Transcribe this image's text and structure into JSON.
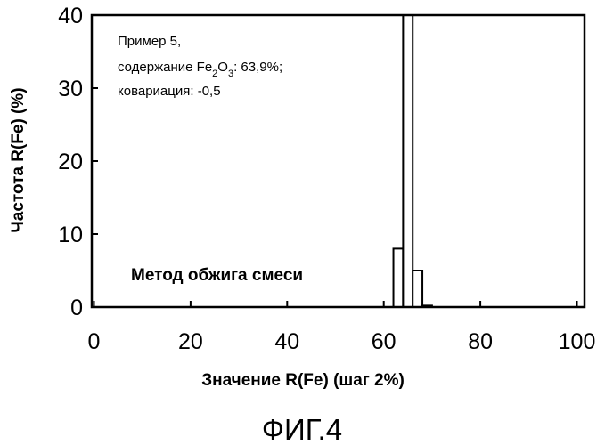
{
  "figure": {
    "caption": "ФИГ.4"
  },
  "chart_data": {
    "type": "bar",
    "xlabel": "Значение R(Fe) (шаг 2%)",
    "ylabel": "Частота R(Fe) (%)",
    "xlim": [
      0,
      102
    ],
    "ylim": [
      0,
      40
    ],
    "xticks": [
      0,
      20,
      40,
      60,
      80,
      100
    ],
    "yticks": [
      0,
      10,
      20,
      30,
      40
    ],
    "grid": false,
    "bin_width": 2,
    "bins": [
      {
        "x0": 62,
        "value": 8
      },
      {
        "x0": 64,
        "value": 40
      },
      {
        "x0": 66,
        "value": 5
      },
      {
        "x0": 68,
        "value": 0.2
      }
    ],
    "annotations": {
      "sample_line1": "Пример 5,",
      "sample_line2_prefix": "содержание Fe",
      "sample_line2_sub1": "2",
      "sample_line2_mid": "O",
      "sample_line2_sub2": "3",
      "sample_line2_suffix": ": 63,9%;",
      "sample_line3": "ковариация: -0,5",
      "method": "Метод обжига смеси"
    }
  }
}
